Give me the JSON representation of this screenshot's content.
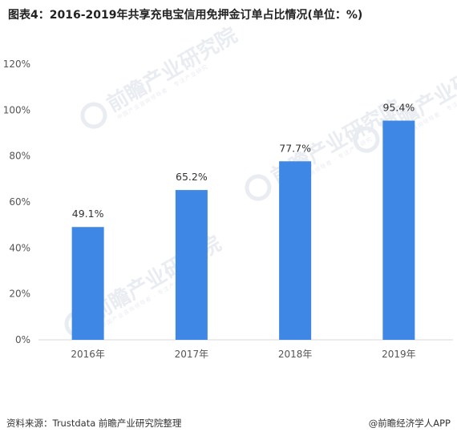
{
  "title": "图表4：2016-2019年共享充电宝信用免押金订单占比情况(单位：%)",
  "footer": {
    "source": "资料来源：Trustdata 前瞻产业研究院整理",
    "brand": "@前瞻经济学人APP"
  },
  "watermark": {
    "text": "前瞻产业研究院",
    "subtext": "中国产业咨询领导者 · 专注产业研究"
  },
  "colors": {
    "bar": "#3e87e4",
    "axis": "#d9d9d9",
    "watermark": "#e9ecf1"
  },
  "chart_data": {
    "type": "bar",
    "title": "图表4：2016-2019年共享充电宝信用免押金订单占比情况(单位：%)",
    "categories": [
      "2016年",
      "2017年",
      "2018年",
      "2019年"
    ],
    "values": [
      49.1,
      65.2,
      77.7,
      95.4
    ],
    "value_labels": [
      "49.1%",
      "65.2%",
      "77.7%",
      "95.4%"
    ],
    "ylim": [
      0,
      120
    ],
    "yticks": [
      0,
      20,
      40,
      60,
      80,
      100,
      120
    ],
    "ytick_labels": [
      "0%",
      "20%",
      "40%",
      "60%",
      "80%",
      "100%",
      "120%"
    ],
    "grid": false,
    "legend": "none"
  }
}
